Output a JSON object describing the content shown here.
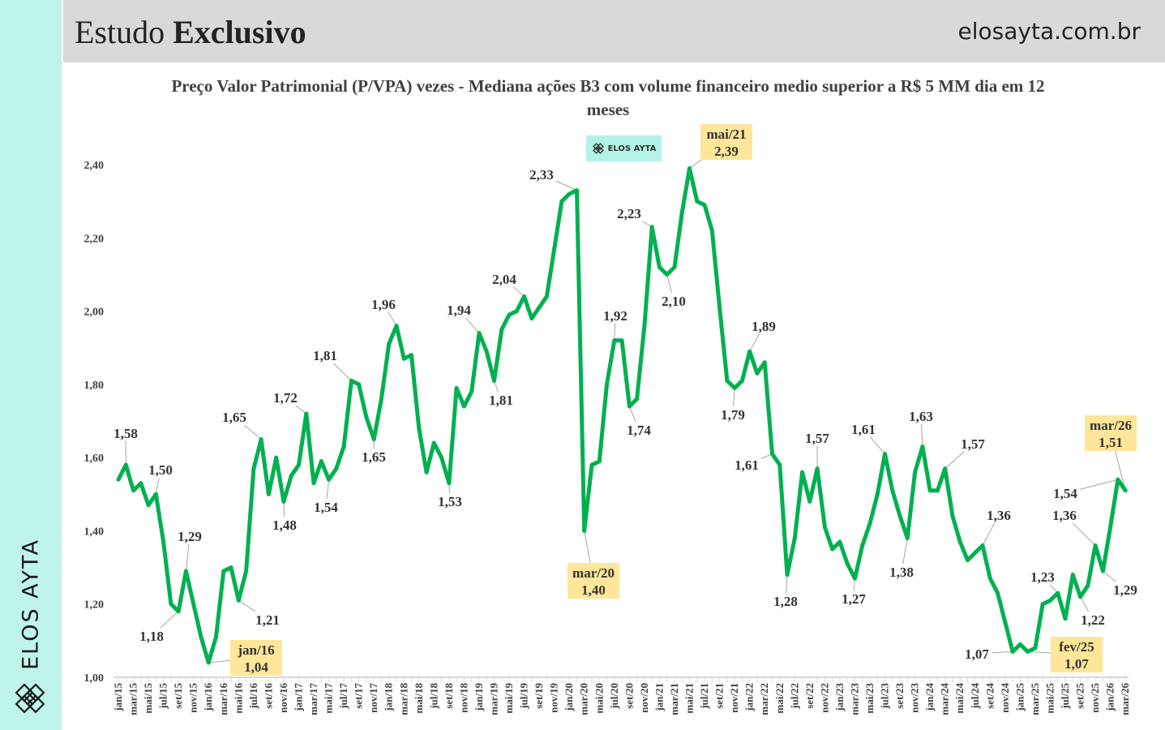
{
  "header": {
    "title_regular": "Estudo ",
    "title_bold": "Exclusivo",
    "site": "elosayta.com.br"
  },
  "sidebar": {
    "brand": "ELOS AYTA",
    "logo_icon": "diamond-lattice-icon"
  },
  "badge": {
    "label": "ELOS AYTA",
    "icon": "diamond-lattice-icon"
  },
  "colors": {
    "line": "#00b050",
    "sidebar": "#bff4ea",
    "header": "#d9d9d9",
    "highlight": "#ffe699"
  },
  "chart_data": {
    "type": "line",
    "title": "Preço Valor Patrimonial (P/VPA) vezes - Mediana ações B3 com volume financeiro medio superior a R$ 5 MM dia em 12 meses",
    "frequency": "monthly",
    "x_start": "jan/15",
    "x_end": "mar/26",
    "ylim": [
      1.0,
      2.4
    ],
    "grid": false,
    "legend": "none",
    "yticks": [
      "1,00",
      "1,20",
      "1,40",
      "1,60",
      "1,80",
      "2,00",
      "2,20",
      "2,40"
    ],
    "xtick_labels": [
      "jan/15",
      "mar/15",
      "mai/15",
      "jul/15",
      "set/15",
      "nov/15",
      "jan/16",
      "mar/16",
      "mai/16",
      "jul/16",
      "set/16",
      "nov/16",
      "jan/17",
      "mar/17",
      "mai/17",
      "jul/17",
      "set/17",
      "nov/17",
      "jan/18",
      "mar/18",
      "mai/18",
      "jul/18",
      "set/18",
      "nov/18",
      "jan/19",
      "mar/19",
      "mai/19",
      "jul/19",
      "set/19",
      "nov/19",
      "jan/20",
      "mar/20",
      "mai/20",
      "jul/20",
      "set/20",
      "nov/20",
      "jan/21",
      "mar/21",
      "mai/21",
      "jul/21",
      "set/21",
      "nov/21",
      "jan/22",
      "mar/22",
      "mai/22",
      "jul/22",
      "set/22",
      "nov/22",
      "jan/23",
      "mar/23",
      "mai/23",
      "jul/23",
      "set/23",
      "nov/23",
      "jan/24",
      "mar/24",
      "mai/24",
      "jul/24",
      "set/24",
      "nov/24",
      "jan/25",
      "mar/25",
      "mai/25",
      "jul/25",
      "set/25",
      "nov/25",
      "jan/26",
      "mar/26"
    ],
    "values": [
      1.54,
      1.58,
      1.51,
      1.53,
      1.47,
      1.5,
      1.37,
      1.2,
      1.18,
      1.29,
      1.2,
      1.11,
      1.04,
      1.11,
      1.29,
      1.3,
      1.21,
      1.29,
      1.57,
      1.65,
      1.5,
      1.6,
      1.48,
      1.55,
      1.58,
      1.72,
      1.53,
      1.59,
      1.54,
      1.57,
      1.63,
      1.81,
      1.8,
      1.71,
      1.65,
      1.76,
      1.91,
      1.96,
      1.87,
      1.88,
      1.68,
      1.56,
      1.64,
      1.6,
      1.53,
      1.79,
      1.74,
      1.78,
      1.94,
      1.89,
      1.81,
      1.95,
      1.99,
      2.0,
      2.04,
      1.98,
      2.01,
      2.04,
      2.17,
      2.3,
      2.32,
      2.33,
      1.4,
      1.58,
      1.59,
      1.8,
      1.92,
      1.92,
      1.74,
      1.76,
      1.96,
      2.23,
      2.12,
      2.1,
      2.12,
      2.27,
      2.39,
      2.3,
      2.29,
      2.22,
      2.01,
      1.81,
      1.79,
      1.81,
      1.89,
      1.83,
      1.86,
      1.61,
      1.58,
      1.28,
      1.38,
      1.56,
      1.48,
      1.57,
      1.41,
      1.35,
      1.37,
      1.31,
      1.27,
      1.36,
      1.42,
      1.5,
      1.61,
      1.51,
      1.44,
      1.38,
      1.56,
      1.63,
      1.51,
      1.51,
      1.57,
      1.44,
      1.37,
      1.32,
      1.34,
      1.36,
      1.27,
      1.23,
      1.15,
      1.07,
      1.09,
      1.07,
      1.08,
      1.2,
      1.21,
      1.23,
      1.16,
      1.28,
      1.22,
      1.25,
      1.36,
      1.29,
      1.41,
      1.54,
      1.51
    ],
    "annotations": [
      {
        "label": "",
        "text": "1,58",
        "month": "fev/15"
      },
      {
        "label": "",
        "text": "1,50",
        "month": "jun/15"
      },
      {
        "label": "",
        "text": "1,29",
        "month": "out/15"
      },
      {
        "label": "",
        "text": "1,18",
        "month": "set/15"
      },
      {
        "label": "jan/16",
        "text": "1,04",
        "month": "jan/16",
        "highlight": true
      },
      {
        "label": "",
        "text": "1,21",
        "month": "mai/16"
      },
      {
        "label": "",
        "text": "1,65",
        "month": "ago/16"
      },
      {
        "label": "",
        "text": "1,48",
        "month": "nov/16"
      },
      {
        "label": "",
        "text": "1,72",
        "month": "fev/17"
      },
      {
        "label": "",
        "text": "1,54",
        "month": "mai/17"
      },
      {
        "label": "",
        "text": "1,81",
        "month": "ago/17"
      },
      {
        "label": "",
        "text": "1,65",
        "month": "nov/17"
      },
      {
        "label": "",
        "text": "1,96",
        "month": "fev/18"
      },
      {
        "label": "",
        "text": "1,53",
        "month": "set/18"
      },
      {
        "label": "",
        "text": "1,94",
        "month": "jan/19"
      },
      {
        "label": "",
        "text": "1,81",
        "month": "mar/19"
      },
      {
        "label": "",
        "text": "2,04",
        "month": "jul/19"
      },
      {
        "label": "",
        "text": "2,33",
        "month": "fev/20"
      },
      {
        "label": "mar/20",
        "text": "1,40",
        "month": "mar/20",
        "highlight": true
      },
      {
        "label": "",
        "text": "1,92",
        "month": "jul/20"
      },
      {
        "label": "",
        "text": "1,74",
        "month": "set/20"
      },
      {
        "label": "",
        "text": "2,23",
        "month": "dez/20"
      },
      {
        "label": "",
        "text": "2,10",
        "month": "fev/21"
      },
      {
        "label": "mai/21",
        "text": "2,39",
        "month": "mai/21",
        "highlight": true
      },
      {
        "label": "",
        "text": "1,79",
        "month": "nov/21"
      },
      {
        "label": "",
        "text": "1,89",
        "month": "jan/22"
      },
      {
        "label": "",
        "text": "1,61",
        "month": "abr/22"
      },
      {
        "label": "",
        "text": "1,28",
        "month": "jun/22"
      },
      {
        "label": "",
        "text": "1,57",
        "month": "out/22"
      },
      {
        "label": "",
        "text": "1,27",
        "month": "mar/23"
      },
      {
        "label": "",
        "text": "1,61",
        "month": "jul/23"
      },
      {
        "label": "",
        "text": "1,38",
        "month": "out/23"
      },
      {
        "label": "",
        "text": "1,63",
        "month": "dez/23"
      },
      {
        "label": "",
        "text": "1,57",
        "month": "mar/24"
      },
      {
        "label": "",
        "text": "1,36",
        "month": "ago/24"
      },
      {
        "label": "",
        "text": "1,07",
        "month": "dez/24"
      },
      {
        "label": "fev/25",
        "text": "1,07",
        "month": "fev/25",
        "highlight": true
      },
      {
        "label": "",
        "text": "1,23",
        "month": "jun/25"
      },
      {
        "label": "",
        "text": "1,22",
        "month": "set/25"
      },
      {
        "label": "",
        "text": "1,36",
        "month": "nov/25"
      },
      {
        "label": "",
        "text": "1,29",
        "month": "dez/25"
      },
      {
        "label": "",
        "text": "1,54",
        "month": "fev/26"
      },
      {
        "label": "mar/26",
        "text": "1,51",
        "month": "mar/26",
        "highlight": true
      }
    ]
  }
}
